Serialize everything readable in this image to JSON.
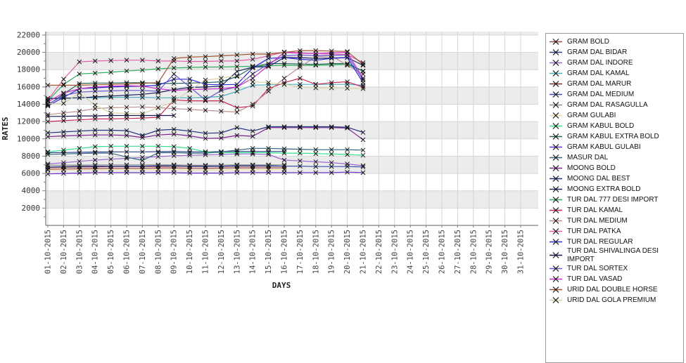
{
  "chart_data": {
    "type": "line",
    "title": "",
    "xlabel": "DAYS",
    "ylabel": "RATES",
    "x_categories": [
      "01-10-2015",
      "02-10-2015",
      "03-10-2015",
      "04-10-2015",
      "05-10-2015",
      "06-10-2015",
      "07-10-2015",
      "08-10-2015",
      "09-10-2015",
      "10-10-2015",
      "11-10-2015",
      "12-10-2015",
      "13-10-2015",
      "14-10-2015",
      "15-10-2015",
      "16-10-2015",
      "17-10-2015",
      "18-10-2015",
      "19-10-2015",
      "20-10-2015",
      "21-10-2015",
      "22-10-2015",
      "23-10-2015",
      "24-10-2015",
      "25-10-2015",
      "26-10-2015",
      "27-10-2015",
      "28-10-2015",
      "29-10-2015",
      "30-10-2015",
      "31-10-2015"
    ],
    "ylim": [
      0,
      22400
    ],
    "ytick_major": 2000,
    "ytick_minor": 1000,
    "ytick_labels": [
      2000,
      4000,
      6000,
      8000,
      10000,
      12000,
      14000,
      16000,
      18000,
      20000,
      22000
    ],
    "grid": true,
    "band_colors": [
      "#ffffff",
      "#ececec"
    ],
    "grid_color": "#d6d6d6",
    "axis_color": "#808080",
    "marker_color": "#141414",
    "legend_position": "right",
    "series": [
      {
        "name": "GRAM BOLD",
        "color": "#9b4a42",
        "values": [
          6500,
          6520,
          6550,
          6570,
          6600,
          6600,
          6600,
          6620,
          6650,
          6600,
          6600,
          6620,
          6650,
          6650,
          6650,
          6650
        ]
      },
      {
        "name": "GRAM DAL BIDAR",
        "color": "#2b3f87",
        "values": [
          8400,
          8420,
          8450,
          8480,
          8500,
          8500,
          8500,
          8520,
          8550,
          8500,
          8500,
          8520,
          8550,
          8550,
          8550,
          8550
        ]
      },
      {
        "name": "GRAM DAL INDORE",
        "color": "#9a66cf",
        "values": [
          7100,
          7250,
          7400,
          7550,
          7650,
          7750,
          7850,
          7950,
          8050,
          8100,
          8150,
          8200,
          8250,
          8250,
          8200,
          7550,
          7450,
          7350,
          7250,
          7100,
          6900
        ]
      },
      {
        "name": "GRAM DAL KAMAL",
        "color": "#49b0c0",
        "values": [
          14700,
          14700,
          14750,
          14750,
          14800,
          14800,
          14800,
          14750,
          14750,
          14750,
          14800,
          14900,
          15500,
          16200,
          16250,
          16300,
          16300,
          16300,
          16300,
          16300,
          16200
        ]
      },
      {
        "name": "GRAM DAL MARUR",
        "color": "#7a2a2a",
        "values": [
          6700,
          6720,
          6750,
          6770,
          6800,
          6800,
          6800,
          6820,
          6850,
          6800,
          6800,
          6820,
          6850,
          6850,
          6850,
          6850
        ]
      },
      {
        "name": "GRAM DAL MEDIUM",
        "color": "#3d4fae",
        "values": [
          6750,
          6800,
          6850,
          6850,
          6850,
          6850,
          6850,
          6900,
          6900,
          6850,
          6850,
          6850,
          6900,
          6900,
          6900,
          6850,
          6850,
          6800,
          6800,
          6800,
          6750
        ]
      },
      {
        "name": "GRAM DAL RASAGULLA",
        "color": "#8a8a8a",
        "values": [
          6950,
          6960,
          6970,
          6980,
          7000,
          7000,
          7000,
          7000,
          7000,
          6950,
          6950,
          6960,
          7000,
          7000,
          7000,
          7000
        ]
      },
      {
        "name": "GRAM GULABI",
        "color": "#f0d9a8",
        "values": [
          6400,
          6410,
          6420,
          6430,
          6450,
          6450,
          6450,
          6450,
          6450,
          6400,
          6400,
          6410,
          6450,
          6450,
          6450,
          6450
        ]
      },
      {
        "name": "GRAM KABUL BOLD",
        "color": "#2ee08e",
        "values": [
          8500,
          8700,
          8900,
          9100,
          9150,
          9150,
          9150,
          9150,
          9100,
          8900,
          8500,
          8400,
          8400,
          8400,
          8400,
          8350,
          8350,
          8300,
          8250,
          8200,
          8100
        ]
      },
      {
        "name": "GRAM KABUL EXTRA BOLD",
        "color": "#21665a",
        "values": [
          13900,
          15200,
          16400,
          16450,
          16450,
          16500,
          16500,
          16400,
          16400,
          16450,
          16500,
          16600,
          17200,
          18300,
          18700,
          18700,
          18650,
          18600,
          18700,
          18700,
          17850
        ]
      },
      {
        "name": "GRAM KABUL GULABI",
        "color": "#6a30c8",
        "values": [
          5950,
          6000,
          6050,
          6100,
          6100,
          6100,
          6100,
          6100,
          6100,
          6050,
          6050,
          6050,
          6100,
          6100,
          6100,
          6100,
          6100,
          6100,
          6100,
          6150,
          6100
        ]
      },
      {
        "name": "MASUR DAL",
        "color": "#31647e",
        "values": [
          8200,
          8250,
          8300,
          8350,
          8350,
          7900,
          7500,
          8400,
          8400,
          8350,
          8350,
          8500,
          8700,
          8900,
          8900,
          8850,
          8800,
          8750,
          8750,
          8750,
          8700
        ]
      },
      {
        "name": "MOONG BOLD",
        "color": "#7d2391",
        "values": [
          10250,
          10350,
          10400,
          10450,
          10450,
          10400,
          10150,
          10450,
          10550,
          10350,
          10050,
          10100,
          10400,
          10300,
          11300,
          11300,
          11300,
          11300,
          11300,
          11250,
          9900
        ]
      },
      {
        "name": "MOONG DAL BEST",
        "color": "#20307d",
        "values": [
          10700,
          10800,
          10900,
          11000,
          11000,
          10950,
          10400,
          11000,
          11100,
          10900,
          10650,
          10700,
          11300,
          10900,
          11400,
          11400,
          11400,
          11400,
          11400,
          11350,
          10750
        ]
      },
      {
        "name": "MOONG EXTRA BOLD",
        "color": "#1b2266",
        "values": [
          14650,
          14700,
          14750,
          14850,
          14950,
          15050,
          15150,
          15350,
          15700,
          15950,
          16000,
          16100,
          17800,
          18300,
          18350,
          19400,
          19400,
          19300,
          19350,
          19400,
          18500
        ]
      },
      {
        "name": "TUR DAL  777 DESI IMPORT",
        "color": "#2fae5e",
        "values": [
          14400,
          16300,
          17500,
          17600,
          17700,
          17850,
          17950,
          18100,
          18200,
          18250,
          18300,
          18300,
          18350,
          18400,
          18450,
          18500,
          18500,
          18500,
          18550,
          18600,
          17800
        ]
      },
      {
        "name": "TUR DAL KAMAL",
        "color": "#c92752",
        "values": [
          12000,
          12100,
          12200,
          12300,
          12300,
          12350,
          12400,
          12500,
          14500,
          14400,
          14400,
          14400,
          13600,
          13800,
          15800,
          16500,
          17000,
          16300,
          16500,
          16600,
          16000
        ]
      },
      {
        "name": "TUR DAL MEDIUM",
        "color": "#bc8f8f",
        "values": [
          12800,
          13000,
          13200,
          13500,
          13600,
          13650,
          13700,
          13600,
          13500,
          13400,
          13300,
          13200,
          13100,
          14000,
          15500,
          17000,
          18300,
          19500,
          19600,
          18500,
          17500
        ]
      },
      {
        "name": "TUR DAL PATKA",
        "color": "#e060a8",
        "values": [
          14500,
          16900,
          18900,
          19000,
          19050,
          19100,
          19100,
          19000,
          19000,
          18950,
          18950,
          19000,
          19000,
          19200,
          19600,
          20050,
          19950,
          19850,
          19800,
          19750,
          18800
        ]
      },
      {
        "name": "TUR DAL REGULAR",
        "color": "#2a2ad0",
        "values": [
          13800,
          14800,
          15800,
          15900,
          16000,
          16050,
          16100,
          16200,
          16900,
          16900,
          16300,
          16250,
          16300,
          18200,
          19300,
          19400,
          19200,
          19100,
          19300,
          19400,
          16500
        ]
      },
      {
        "name": "TUR DAL SHIVALINGA DESI IMPORT",
        "color": "#16164e",
        "values": [
          12600,
          12600,
          12650,
          12650,
          12700,
          12700,
          12700,
          12700,
          12700
        ]
      },
      {
        "name": "TUR DAL SORTEX",
        "color": "#6a5ace",
        "values": [
          14000,
          15000,
          15400,
          15500,
          15550,
          15600,
          15600,
          15500,
          17500,
          16000,
          14500,
          15600,
          16000,
          17500,
          18700,
          19600,
          19700,
          19600,
          19650,
          19700,
          16800
        ]
      },
      {
        "name": "TUR DAL VASAD",
        "color": "#cb2fcb",
        "values": [
          14300,
          15300,
          15800,
          16000,
          16100,
          16150,
          16100,
          15800,
          15600,
          15700,
          15750,
          15800,
          16000,
          17000,
          18500,
          20000,
          19900,
          19850,
          19950,
          20000,
          17000
        ]
      },
      {
        "name": "URID DAL DOUBLE HORSE",
        "color": "#a0522d",
        "values": [
          16200,
          16200,
          16200,
          16250,
          16300,
          16350,
          16400,
          16500,
          19300,
          19450,
          19500,
          19600,
          19700,
          19800,
          19800,
          20000,
          20200,
          20200,
          20150,
          20100,
          18600
        ]
      },
      {
        "name": "URID DAL GOLA PREMIUM",
        "color": "#d8d2a8",
        "values": [
          14050,
          14100,
          15300,
          13900,
          13000,
          12950,
          12900,
          13600,
          14300,
          15600,
          16800,
          17000,
          17300,
          16600,
          16500,
          16300,
          16000,
          15900,
          15900,
          15850,
          15800
        ]
      }
    ]
  }
}
